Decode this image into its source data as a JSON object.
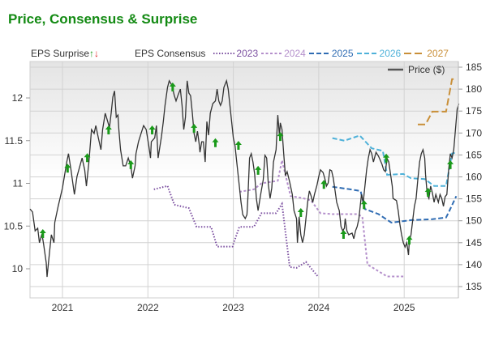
{
  "title": "Price, Consensus & Surprise",
  "legend": {
    "surprise_label": "EPS Surprise",
    "surprise_up": "↑",
    "surprise_down": "↓",
    "consensus_label": "EPS Consensus",
    "price_label": "Price ($)"
  },
  "chart_data": {
    "type": "line",
    "title": "Price, Consensus & Surprise",
    "x_ticks": [
      "2021",
      "2022",
      "2023",
      "2024",
      "2025"
    ],
    "x_range": [
      2020.62,
      2025.65
    ],
    "left_axis": {
      "label": "EPS",
      "ticks": [
        "12",
        "11.5",
        "11",
        "10.5",
        "10"
      ],
      "range": [
        9.66,
        12.35
      ]
    },
    "right_axis": {
      "label": "Price ($)",
      "ticks": [
        "185",
        "180",
        "175",
        "170",
        "165",
        "160",
        "155",
        "150",
        "145",
        "140",
        "135"
      ],
      "range": [
        132.4,
        185
      ]
    },
    "grid": true,
    "colors": {
      "price": "#333333",
      "2023": "#7b4fa0",
      "2024": "#b48fcb",
      "2025": "#2f6cb3",
      "2026": "#4eb1d9",
      "2027": "#c98f38",
      "surprise_up": "#1a9a1a",
      "surprise_down": "#e02020"
    },
    "price": [
      [
        2020.62,
        152.7
      ],
      [
        2020.65,
        152.0
      ],
      [
        2020.68,
        147.7
      ],
      [
        2020.71,
        148.3
      ],
      [
        2020.73,
        145.0
      ],
      [
        2020.76,
        147.0
      ],
      [
        2020.78,
        144.6
      ],
      [
        2020.81,
        140.4
      ],
      [
        2020.82,
        137.2
      ],
      [
        2020.85,
        143.1
      ],
      [
        2020.87,
        146.8
      ],
      [
        2020.9,
        145.0
      ],
      [
        2020.91,
        149.6
      ],
      [
        2020.95,
        153.3
      ],
      [
        2021.0,
        157.5
      ],
      [
        2021.05,
        163.4
      ],
      [
        2021.07,
        165.3
      ],
      [
        2021.1,
        161.6
      ],
      [
        2021.14,
        156.0
      ],
      [
        2021.17,
        160.1
      ],
      [
        2021.23,
        164.3
      ],
      [
        2021.26,
        161.6
      ],
      [
        2021.28,
        157.9
      ],
      [
        2021.31,
        163.4
      ],
      [
        2021.34,
        170.8
      ],
      [
        2021.37,
        169.9
      ],
      [
        2021.39,
        171.7
      ],
      [
        2021.42,
        168.9
      ],
      [
        2021.45,
        166.2
      ],
      [
        2021.47,
        170.8
      ],
      [
        2021.5,
        174.5
      ],
      [
        2021.53,
        172.6
      ],
      [
        2021.55,
        171.2
      ],
      [
        2021.57,
        174.5
      ],
      [
        2021.59,
        178.2
      ],
      [
        2021.61,
        179.6
      ],
      [
        2021.63,
        173.6
      ],
      [
        2021.65,
        174.1
      ],
      [
        2021.66,
        170.8
      ],
      [
        2021.68,
        166.2
      ],
      [
        2021.71,
        162.5
      ],
      [
        2021.74,
        162.5
      ],
      [
        2021.77,
        164.3
      ],
      [
        2021.8,
        162.5
      ],
      [
        2021.82,
        159.7
      ],
      [
        2021.85,
        162.5
      ],
      [
        2021.86,
        165.3
      ],
      [
        2021.89,
        168.0
      ],
      [
        2021.92,
        169.9
      ],
      [
        2021.95,
        171.7
      ],
      [
        2021.98,
        170.8
      ],
      [
        2022.01,
        167.1
      ],
      [
        2022.03,
        164.3
      ],
      [
        2022.04,
        168.0
      ],
      [
        2022.08,
        168.9
      ],
      [
        2022.1,
        171.7
      ],
      [
        2022.12,
        164.3
      ],
      [
        2022.16,
        169.3
      ],
      [
        2022.18,
        172.6
      ],
      [
        2022.2,
        176.3
      ],
      [
        2022.23,
        180.4
      ],
      [
        2022.25,
        181.9
      ],
      [
        2022.28,
        180.9
      ],
      [
        2022.31,
        178.5
      ],
      [
        2022.33,
        177.3
      ],
      [
        2022.35,
        178.5
      ],
      [
        2022.38,
        180.0
      ],
      [
        2022.4,
        176.3
      ],
      [
        2022.42,
        170.8
      ],
      [
        2022.44,
        173.6
      ],
      [
        2022.46,
        181.9
      ],
      [
        2022.48,
        179.1
      ],
      [
        2022.5,
        178.5
      ],
      [
        2022.52,
        174.5
      ],
      [
        2022.54,
        169.9
      ],
      [
        2022.56,
        168.0
      ],
      [
        2022.58,
        170.4
      ],
      [
        2022.6,
        167.5
      ],
      [
        2022.61,
        165.6
      ],
      [
        2022.63,
        168.0
      ],
      [
        2022.65,
        168.0
      ],
      [
        2022.67,
        163.4
      ],
      [
        2022.69,
        172.6
      ],
      [
        2022.71,
        169.5
      ],
      [
        2022.73,
        174.5
      ],
      [
        2022.76,
        176.7
      ],
      [
        2022.79,
        177.3
      ],
      [
        2022.81,
        180.0
      ],
      [
        2022.83,
        177.3
      ],
      [
        2022.85,
        176.3
      ],
      [
        2022.87,
        177.3
      ],
      [
        2022.89,
        180.4
      ],
      [
        2022.92,
        181.9
      ],
      [
        2022.94,
        180.0
      ],
      [
        2022.96,
        176.3
      ],
      [
        2022.98,
        172.6
      ],
      [
        2023.0,
        168.9
      ],
      [
        2023.02,
        167.1
      ],
      [
        2023.04,
        163.4
      ],
      [
        2023.07,
        157.9
      ],
      [
        2023.09,
        154.2
      ],
      [
        2023.11,
        151.4
      ],
      [
        2023.14,
        150.5
      ],
      [
        2023.16,
        151.4
      ],
      [
        2023.17,
        155.1
      ],
      [
        2023.19,
        164.3
      ],
      [
        2023.21,
        165.3
      ],
      [
        2023.23,
        163.4
      ],
      [
        2023.25,
        160.6
      ],
      [
        2023.27,
        155.1
      ],
      [
        2023.29,
        152.3
      ],
      [
        2023.32,
        156.0
      ],
      [
        2023.35,
        159.4
      ],
      [
        2023.37,
        164.9
      ],
      [
        2023.39,
        164.3
      ],
      [
        2023.41,
        158.2
      ],
      [
        2023.43,
        155.1
      ],
      [
        2023.45,
        157.5
      ],
      [
        2023.47,
        163.4
      ],
      [
        2023.5,
        166.2
      ],
      [
        2023.52,
        174.1
      ],
      [
        2023.54,
        169.3
      ],
      [
        2023.55,
        172.3
      ],
      [
        2023.57,
        170.8
      ],
      [
        2023.59,
        165.3
      ],
      [
        2023.61,
        160.3
      ],
      [
        2023.63,
        161.2
      ],
      [
        2023.66,
        158.8
      ],
      [
        2023.69,
        156.0
      ],
      [
        2023.71,
        152.3
      ],
      [
        2023.74,
        150.5
      ],
      [
        2023.75,
        145.0
      ],
      [
        2023.77,
        150.9
      ],
      [
        2023.79,
        146.8
      ],
      [
        2023.81,
        145.0
      ],
      [
        2023.83,
        146.8
      ],
      [
        2023.85,
        150.5
      ],
      [
        2023.87,
        154.2
      ],
      [
        2023.89,
        156.8
      ],
      [
        2023.91,
        155.7
      ],
      [
        2023.93,
        154.2
      ],
      [
        2023.95,
        156.0
      ],
      [
        2023.98,
        158.2
      ],
      [
        2024.0,
        160.1
      ],
      [
        2024.02,
        161.6
      ],
      [
        2024.05,
        161.0
      ],
      [
        2024.07,
        159.7
      ],
      [
        2024.09,
        157.9
      ],
      [
        2024.11,
        158.6
      ],
      [
        2024.13,
        161.6
      ],
      [
        2024.15,
        161.4
      ],
      [
        2024.17,
        159.7
      ],
      [
        2024.19,
        157.0
      ],
      [
        2024.21,
        154.2
      ],
      [
        2024.24,
        152.3
      ],
      [
        2024.26,
        148.7
      ],
      [
        2024.28,
        147.7
      ],
      [
        2024.3,
        148.3
      ],
      [
        2024.31,
        150.5
      ],
      [
        2024.33,
        147.7
      ],
      [
        2024.35,
        146.8
      ],
      [
        2024.39,
        147.2
      ],
      [
        2024.41,
        145.9
      ],
      [
        2024.43,
        147.7
      ],
      [
        2024.45,
        148.7
      ],
      [
        2024.47,
        150.5
      ],
      [
        2024.49,
        154.2
      ],
      [
        2024.5,
        156.0
      ],
      [
        2024.52,
        154.2
      ],
      [
        2024.54,
        157.9
      ],
      [
        2024.56,
        161.6
      ],
      [
        2024.58,
        164.3
      ],
      [
        2024.6,
        166.2
      ],
      [
        2024.62,
        165.3
      ],
      [
        2024.64,
        163.4
      ],
      [
        2024.67,
        165.6
      ],
      [
        2024.7,
        164.7
      ],
      [
        2024.74,
        162.9
      ],
      [
        2024.76,
        161.6
      ],
      [
        2024.78,
        161.2
      ],
      [
        2024.8,
        164.2
      ],
      [
        2024.82,
        163.4
      ],
      [
        2024.84,
        160.6
      ],
      [
        2024.86,
        157.9
      ],
      [
        2024.87,
        155.1
      ],
      [
        2024.91,
        154.6
      ],
      [
        2024.93,
        152.3
      ],
      [
        2024.95,
        149.2
      ],
      [
        2024.97,
        146.8
      ],
      [
        2024.99,
        145.0
      ],
      [
        2025.01,
        144.0
      ],
      [
        2025.03,
        145.0
      ],
      [
        2025.05,
        142.2
      ],
      [
        2025.06,
        145.3
      ],
      [
        2025.08,
        146.8
      ],
      [
        2025.1,
        150.1
      ],
      [
        2025.12,
        153.3
      ],
      [
        2025.14,
        155.1
      ],
      [
        2025.16,
        159.4
      ],
      [
        2025.18,
        163.4
      ],
      [
        2025.2,
        165.3
      ],
      [
        2025.22,
        166.2
      ],
      [
        2025.24,
        164.3
      ],
      [
        2025.25,
        160.6
      ],
      [
        2025.27,
        156.0
      ],
      [
        2025.29,
        155.1
      ],
      [
        2025.31,
        157.9
      ],
      [
        2025.33,
        156.4
      ],
      [
        2025.35,
        154.2
      ],
      [
        2025.37,
        156.0
      ],
      [
        2025.4,
        154.2
      ],
      [
        2025.42,
        156.0
      ],
      [
        2025.44,
        155.1
      ],
      [
        2025.46,
        153.3
      ],
      [
        2025.48,
        155.5
      ],
      [
        2025.5,
        156.0
      ],
      [
        2025.52,
        161.6
      ],
      [
        2025.54,
        165.3
      ],
      [
        2025.56,
        164.3
      ],
      [
        2025.58,
        166.2
      ],
      [
        2025.6,
        170.8
      ],
      [
        2025.62,
        175.4
      ],
      [
        2025.64,
        176.7
      ]
    ],
    "series": [
      {
        "name": "2023",
        "style": "dotted",
        "values": [
          [
            2022.07,
            10.93
          ],
          [
            2022.23,
            10.97
          ],
          [
            2022.31,
            10.75
          ],
          [
            2022.48,
            10.71
          ],
          [
            2022.57,
            10.49
          ],
          [
            2022.74,
            10.49
          ],
          [
            2022.81,
            10.26
          ],
          [
            2022.99,
            10.26
          ],
          [
            2023.07,
            10.49
          ],
          [
            2023.24,
            10.49
          ],
          [
            2023.33,
            10.65
          ],
          [
            2023.5,
            10.65
          ],
          [
            2023.57,
            10.76
          ],
          [
            2023.66,
            10.02
          ],
          [
            2023.74,
            10.01
          ],
          [
            2023.85,
            10.08
          ],
          [
            2023.99,
            9.91
          ]
        ]
      },
      {
        "name": "2024",
        "style": "short-dash",
        "values": [
          [
            2023.07,
            10.9
          ],
          [
            2023.24,
            10.93
          ],
          [
            2023.33,
            11.0
          ],
          [
            2023.52,
            11.03
          ],
          [
            2023.57,
            11.27
          ],
          [
            2023.67,
            10.85
          ],
          [
            2023.8,
            10.83
          ],
          [
            2023.91,
            10.8
          ],
          [
            2024.02,
            10.65
          ],
          [
            2024.16,
            10.64
          ],
          [
            2024.45,
            10.64
          ],
          [
            2024.51,
            10.61
          ],
          [
            2024.57,
            10.05
          ],
          [
            2024.8,
            9.91
          ],
          [
            2024.89,
            9.91
          ],
          [
            2024.99,
            9.91
          ]
        ]
      },
      {
        "name": "2025",
        "style": "dash",
        "values": [
          [
            2024.16,
            10.96
          ],
          [
            2024.37,
            10.93
          ],
          [
            2024.49,
            10.91
          ],
          [
            2024.54,
            10.7
          ],
          [
            2024.7,
            10.64
          ],
          [
            2024.85,
            10.54
          ],
          [
            2025.08,
            10.57
          ],
          [
            2025.33,
            10.58
          ],
          [
            2025.49,
            10.6
          ],
          [
            2025.52,
            10.66
          ],
          [
            2025.61,
            10.85
          ]
        ]
      },
      {
        "name": "2026",
        "style": "dash",
        "values": [
          [
            2024.16,
            11.53
          ],
          [
            2024.3,
            11.5
          ],
          [
            2024.48,
            11.56
          ],
          [
            2024.62,
            11.41
          ],
          [
            2024.75,
            11.38
          ],
          [
            2024.8,
            11.1
          ],
          [
            2024.99,
            11.11
          ],
          [
            2025.08,
            11.06
          ],
          [
            2025.24,
            11.05
          ],
          [
            2025.35,
            10.97
          ],
          [
            2025.49,
            10.97
          ],
          [
            2025.56,
            11.35
          ],
          [
            2025.61,
            11.36
          ]
        ]
      },
      {
        "name": "2027",
        "style": "long-dash",
        "values": [
          [
            2025.16,
            11.69
          ],
          [
            2025.25,
            11.69
          ],
          [
            2025.33,
            11.84
          ],
          [
            2025.49,
            11.84
          ],
          [
            2025.56,
            12.22
          ],
          [
            2025.61,
            12.22
          ]
        ]
      }
    ],
    "surprises": [
      {
        "date": 2020.77,
        "price": 147.0,
        "direction": "up"
      },
      {
        "date": 2021.06,
        "price": 161.9,
        "direction": "up"
      },
      {
        "date": 2021.29,
        "price": 164.3,
        "direction": "up"
      },
      {
        "date": 2021.54,
        "price": 170.6,
        "direction": "up"
      },
      {
        "date": 2021.8,
        "price": 162.7,
        "direction": "up"
      },
      {
        "date": 2022.05,
        "price": 170.6,
        "direction": "up"
      },
      {
        "date": 2022.29,
        "price": 180.4,
        "direction": "up"
      },
      {
        "date": 2022.54,
        "price": 171.0,
        "direction": "up"
      },
      {
        "date": 2022.79,
        "price": 167.7,
        "direction": "up"
      },
      {
        "date": 2023.06,
        "price": 167.1,
        "direction": "up"
      },
      {
        "date": 2023.29,
        "price": 161.4,
        "direction": "up"
      },
      {
        "date": 2023.55,
        "price": 169.1,
        "direction": "up"
      },
      {
        "date": 2023.79,
        "price": 151.8,
        "direction": "up"
      },
      {
        "date": 2024.06,
        "price": 158.2,
        "direction": "up"
      },
      {
        "date": 2024.29,
        "price": 146.8,
        "direction": "up"
      },
      {
        "date": 2024.53,
        "price": 153.6,
        "direction": "up"
      },
      {
        "date": 2024.79,
        "price": 164.2,
        "direction": "up"
      },
      {
        "date": 2025.06,
        "price": 145.5,
        "direction": "up"
      },
      {
        "date": 2025.28,
        "price": 156.4,
        "direction": "up"
      },
      {
        "date": 2025.54,
        "price": 162.7,
        "direction": "up"
      }
    ]
  }
}
